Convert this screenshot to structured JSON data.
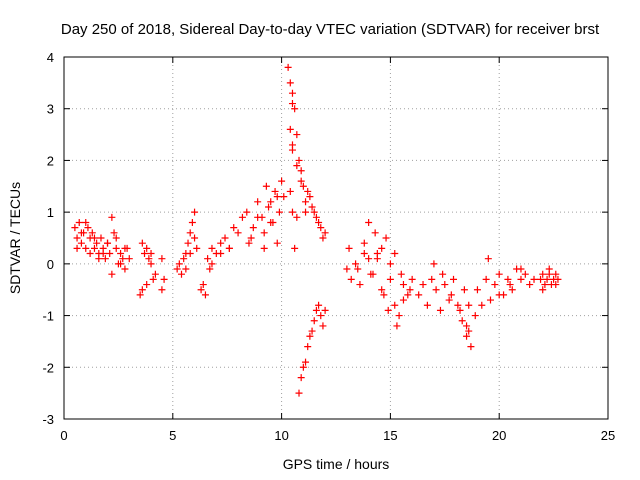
{
  "chart_data": {
    "type": "scatter",
    "title": "Day 250 of 2018, Sidereal Day-to-day VTEC variation (SDTVAR) for receiver brst",
    "xlabel": "GPS time / hours",
    "ylabel": "SDTVAR / TECUs",
    "xlim": [
      0,
      25
    ],
    "ylim": [
      -3,
      4
    ],
    "x_ticks": [
      0,
      5,
      10,
      15,
      20,
      25
    ],
    "y_ticks": [
      -3,
      -2,
      -1,
      0,
      1,
      2,
      3,
      4
    ],
    "grid": true,
    "marker": "+",
    "color": "#ff0000",
    "series": [
      {
        "name": "SDTVAR",
        "x": [
          0.5,
          0.6,
          0.7,
          0.8,
          0.9,
          1.0,
          1.1,
          1.2,
          1.3,
          1.4,
          1.5,
          1.6,
          1.7,
          1.8,
          1.9,
          2.0,
          2.1,
          2.2,
          2.3,
          2.4,
          2.5,
          2.6,
          2.7,
          2.8,
          2.9,
          3.0,
          0.6,
          0.8,
          1.0,
          1.2,
          1.4,
          1.6,
          1.8,
          2.0,
          2.2,
          2.4,
          2.6,
          2.8,
          3.5,
          3.6,
          3.7,
          3.8,
          3.9,
          4.0,
          4.1,
          4.2,
          3.6,
          3.8,
          4.0,
          4.5,
          4.5,
          4.6,
          5.2,
          5.3,
          5.4,
          5.5,
          5.6,
          5.7,
          5.8,
          5.9,
          6.0,
          6.1,
          5.6,
          5.8,
          6.0,
          6.3,
          6.4,
          6.5,
          6.6,
          6.7,
          6.8,
          7.0,
          7.2,
          7.4,
          7.6,
          7.8,
          8.0,
          8.2,
          8.4,
          6.8,
          7.2,
          7.6,
          8.5,
          8.7,
          8.9,
          9.1,
          9.3,
          9.5,
          9.7,
          9.9,
          10.1,
          8.6,
          8.9,
          9.2,
          9.5,
          9.8,
          10.0,
          9.2,
          9.4,
          9.6,
          9.8,
          10.3,
          10.4,
          10.5,
          10.6,
          10.7,
          10.8,
          10.9,
          11.0,
          11.1,
          11.2,
          11.4,
          11.6,
          11.8,
          12.0,
          10.5,
          10.7,
          10.9,
          11.1,
          11.3,
          11.5,
          11.7,
          11.9,
          10.8,
          10.9,
          11.0,
          11.1,
          11.2,
          11.3,
          11.4,
          11.5,
          11.6,
          11.7,
          11.8,
          11.9,
          12.0,
          10.4,
          10.5,
          10.4,
          10.5,
          10.6,
          10.5,
          10.7,
          13.0,
          13.1,
          13.2,
          13.4,
          13.6,
          13.8,
          14.0,
          14.2,
          14.4,
          14.6,
          14.8,
          15.0,
          15.2,
          15.4,
          15.6,
          15.8,
          16.0,
          13.5,
          13.8,
          14.1,
          14.4,
          14.7,
          15.0,
          15.3,
          15.6,
          15.9,
          14.0,
          14.3,
          14.6,
          14.9,
          15.2,
          15.5,
          16.3,
          16.5,
          16.7,
          16.9,
          17.1,
          17.3,
          17.5,
          17.7,
          17.9,
          18.1,
          18.3,
          18.5,
          18.7,
          18.9,
          17.0,
          17.4,
          17.8,
          18.2,
          18.6,
          18.4,
          18.5,
          18.6,
          19.0,
          19.2,
          19.4,
          19.6,
          19.8,
          20.0,
          20.2,
          20.4,
          20.6,
          20.8,
          21.0,
          21.2,
          21.4,
          21.6,
          19.5,
          20.0,
          20.5,
          21.0,
          21.9,
          22.0,
          22.1,
          22.2,
          22.3,
          22.4,
          22.5,
          22.6,
          22.7,
          22.0,
          22.3,
          22.6
        ],
        "y": [
          0.7,
          0.5,
          0.8,
          0.4,
          0.6,
          0.3,
          0.7,
          0.5,
          0.6,
          0.3,
          0.4,
          0.2,
          0.5,
          0.3,
          0.1,
          0.4,
          0.2,
          0.9,
          0.6,
          0.3,
          0.0,
          0.2,
          0.1,
          -0.1,
          0.3,
          0.1,
          0.3,
          0.6,
          0.8,
          0.2,
          0.5,
          0.1,
          0.2,
          0.4,
          -0.2,
          0.5,
          0.0,
          0.3,
          -0.6,
          -0.5,
          0.2,
          -0.4,
          0.1,
          0.0,
          -0.3,
          -0.2,
          0.4,
          0.3,
          0.2,
          -0.5,
          0.1,
          -0.3,
          -0.1,
          0.0,
          -0.2,
          0.1,
          0.2,
          0.4,
          0.6,
          0.8,
          1.0,
          0.3,
          -0.1,
          0.2,
          0.5,
          -0.5,
          -0.4,
          -0.6,
          0.1,
          -0.1,
          0.3,
          0.2,
          0.4,
          0.5,
          0.3,
          0.7,
          0.6,
          0.9,
          1.0,
          0.0,
          0.2,
          0.3,
          0.4,
          0.7,
          1.2,
          0.9,
          1.5,
          1.2,
          1.4,
          1.0,
          1.3,
          0.5,
          0.9,
          0.3,
          0.8,
          0.4,
          1.6,
          0.6,
          1.1,
          0.8,
          1.3,
          3.8,
          3.5,
          3.3,
          3.0,
          2.5,
          2.0,
          1.8,
          1.5,
          1.2,
          1.4,
          1.1,
          0.9,
          0.7,
          0.6,
          2.2,
          1.9,
          1.6,
          1.0,
          1.3,
          1.0,
          0.8,
          0.5,
          -2.5,
          -2.2,
          -2.0,
          -1.9,
          -1.6,
          -1.4,
          -1.3,
          -1.1,
          -0.9,
          -0.8,
          -1.0,
          -1.2,
          -0.9,
          2.6,
          2.3,
          1.4,
          1.0,
          0.3,
          3.1,
          0.9,
          -0.1,
          0.3,
          -0.3,
          0.0,
          -0.4,
          0.4,
          0.1,
          -0.2,
          0.2,
          -0.5,
          0.5,
          -0.3,
          -0.8,
          -1.0,
          -0.4,
          -0.6,
          -0.3,
          -0.1,
          0.2,
          -0.2,
          0.1,
          -0.6,
          0.0,
          -1.2,
          -0.7,
          -0.5,
          0.8,
          0.6,
          0.3,
          -0.9,
          0.2,
          -0.2,
          -0.6,
          -0.4,
          -0.8,
          -0.3,
          -0.5,
          -0.9,
          -0.4,
          -0.7,
          -0.3,
          -0.8,
          -1.1,
          -1.4,
          -1.6,
          -1.0,
          0.0,
          -0.2,
          -0.6,
          -0.9,
          -1.3,
          -0.5,
          -1.2,
          -0.8,
          -0.5,
          -0.8,
          -0.3,
          -0.7,
          -0.4,
          -0.2,
          -0.6,
          -0.3,
          -0.5,
          -0.1,
          -0.3,
          -0.2,
          -0.4,
          -0.3,
          0.1,
          -0.6,
          -0.4,
          -0.1,
          -0.3,
          -0.2,
          -0.4,
          -0.3,
          -0.2,
          -0.4,
          -0.3,
          -0.2,
          -0.3,
          -0.5,
          -0.1,
          -0.4
        ]
      }
    ]
  }
}
